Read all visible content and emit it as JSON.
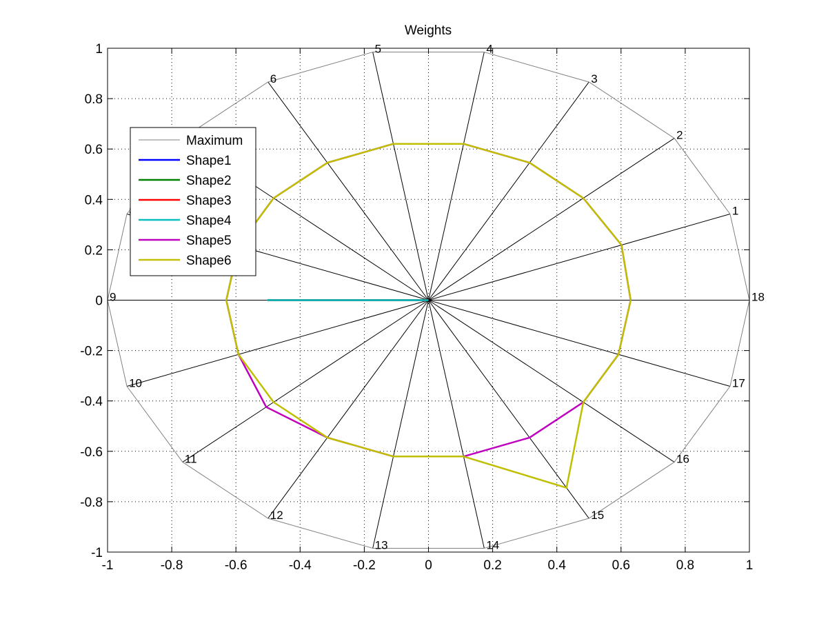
{
  "chart_data": {
    "type": "line",
    "title": "Weights",
    "xlim": [
      -1,
      1
    ],
    "ylim": [
      -1,
      1
    ],
    "x_ticks": [
      "-1",
      "-0.8",
      "-0.6",
      "-0.4",
      "-0.2",
      "0",
      "0.2",
      "0.4",
      "0.6",
      "0.8",
      "1"
    ],
    "y_ticks": [
      "1",
      "0.8",
      "0.6",
      "0.4",
      "0.2",
      "0",
      "-0.2",
      "-0.4",
      "-0.6",
      "-0.8",
      "-1"
    ],
    "x_tick_values": [
      -1,
      -0.8,
      -0.6,
      -0.4,
      -0.2,
      0,
      0.2,
      0.4,
      0.6,
      0.8,
      1
    ],
    "y_tick_values": [
      1,
      0.8,
      0.6,
      0.4,
      0.2,
      0,
      -0.2,
      -0.4,
      -0.6,
      -0.8,
      -1
    ],
    "grid": true,
    "legend_position": "upper-left",
    "axes_labels": [
      "1",
      "2",
      "3",
      "4",
      "5",
      "6",
      "7",
      "8",
      "9",
      "10",
      "11",
      "12",
      "13",
      "14",
      "15",
      "16",
      "17",
      "18"
    ],
    "axes_angles_deg": [
      20,
      40,
      60,
      80,
      100,
      120,
      140,
      160,
      180,
      200,
      220,
      240,
      260,
      280,
      300,
      320,
      340,
      0
    ],
    "series": [
      {
        "name": "Maximum",
        "color": "#808080",
        "width": 1,
        "radii": [
          1,
          1,
          1,
          1,
          1,
          1,
          1,
          1,
          1,
          1,
          1,
          1,
          1,
          1,
          1,
          1,
          1,
          1
        ]
      },
      {
        "name": "Shape1",
        "color": "#0000ff",
        "width": 2.5,
        "radii": [
          0,
          0,
          0,
          0,
          0,
          0,
          0,
          0,
          0.5,
          0,
          0,
          0,
          0,
          0,
          0,
          0,
          0,
          0
        ]
      },
      {
        "name": "Shape2",
        "color": "#007f00",
        "width": 2.5,
        "radii": [
          0,
          0,
          0,
          0,
          0,
          0,
          0,
          0,
          0.5,
          0,
          0,
          0,
          0,
          0,
          0,
          0,
          0,
          0
        ]
      },
      {
        "name": "Shape3",
        "color": "#ff0000",
        "width": 2.5,
        "radii": [
          0,
          0,
          0,
          0,
          0,
          0,
          0,
          0,
          0.5,
          0,
          0,
          0,
          0,
          0,
          0,
          0,
          0,
          0
        ]
      },
      {
        "name": "Shape4",
        "color": "#00bfbf",
        "width": 2.5,
        "radii": [
          0,
          0,
          0,
          0,
          0,
          0,
          0,
          0,
          0.5,
          0,
          0,
          0,
          0,
          0,
          0,
          0,
          0,
          0
        ]
      },
      {
        "name": "Shape5",
        "color": "#bf00bf",
        "width": 2.5,
        "radii": [
          0.64,
          0.63,
          0.63,
          0.63,
          0.63,
          0.63,
          0.63,
          0.63,
          0.63,
          0.63,
          0.66,
          0.63,
          0.63,
          0.63,
          0.63,
          0.63,
          0.63,
          0.63
        ]
      },
      {
        "name": "Shape6",
        "color": "#bfbf00",
        "width": 2.5,
        "radii": [
          0.64,
          0.63,
          0.63,
          0.63,
          0.63,
          0.63,
          0.63,
          0.63,
          0.63,
          0.63,
          0.63,
          0.63,
          0.63,
          0.63,
          0.86,
          0.63,
          0.63,
          0.63
        ]
      }
    ]
  }
}
